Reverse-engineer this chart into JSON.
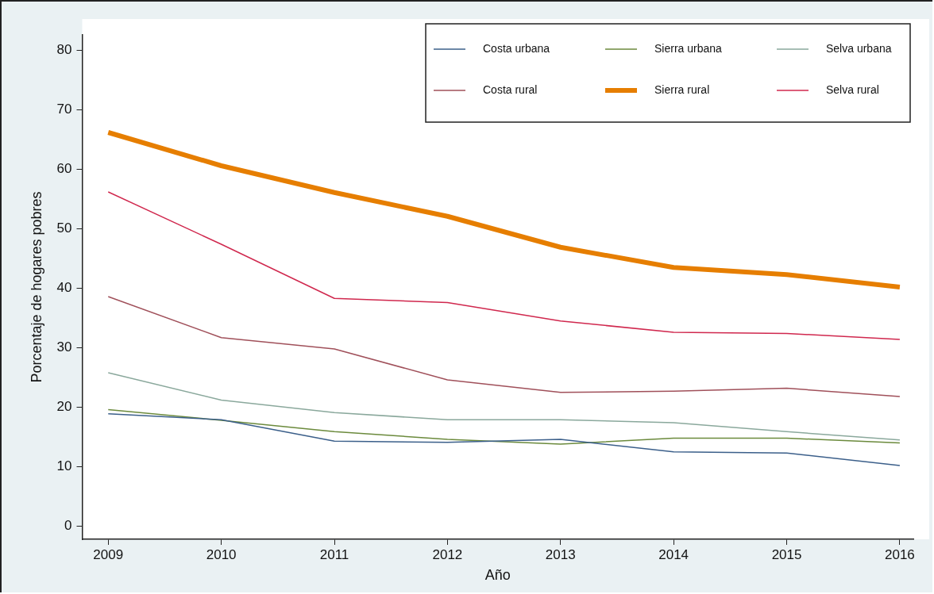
{
  "chart_data": {
    "type": "line",
    "xlabel": "Año",
    "ylabel": "Porcentaje de hogares pobres",
    "x": [
      2009,
      2010,
      2011,
      2012,
      2013,
      2014,
      2015,
      2016
    ],
    "xlim": [
      2008.77,
      2016.12
    ],
    "xticks": [
      2009,
      2010,
      2011,
      2012,
      2013,
      2014,
      2015,
      2016
    ],
    "ylim": [
      -2.2,
      82.6
    ],
    "yticks": [
      0,
      10,
      20,
      30,
      40,
      50,
      60,
      70,
      80
    ],
    "grid": false,
    "legend": "top right",
    "marker": "none",
    "line_style": "solid",
    "series": [
      {
        "name": "Costa urbana",
        "color": "#3b5f8a",
        "values": [
          18.9,
          17.9,
          14.3,
          14.1,
          14.6,
          12.5,
          12.3,
          10.2
        ]
      },
      {
        "name": "Sierra urbana",
        "color": "#6b8a3c",
        "values": [
          19.6,
          17.8,
          15.9,
          14.6,
          13.8,
          14.8,
          14.8,
          14.0
        ]
      },
      {
        "name": "Selva urbana",
        "color": "#8aa89c",
        "values": [
          25.8,
          21.2,
          19.1,
          17.9,
          17.9,
          17.4,
          15.9,
          14.5
        ]
      },
      {
        "name": "Costa rural",
        "color": "#a0505a",
        "values": [
          38.6,
          31.7,
          29.8,
          24.6,
          22.5,
          22.7,
          23.2,
          21.8
        ]
      },
      {
        "name": "Sierra rural",
        "color": "#e67e00",
        "values": [
          66.2,
          60.6,
          56.1,
          52.1,
          46.9,
          43.5,
          42.3,
          40.2
        ]
      },
      {
        "name": "Selva rural",
        "color": "#d0284e",
        "values": [
          56.2,
          47.4,
          38.3,
          37.6,
          34.5,
          32.6,
          32.4,
          31.4
        ]
      }
    ]
  }
}
